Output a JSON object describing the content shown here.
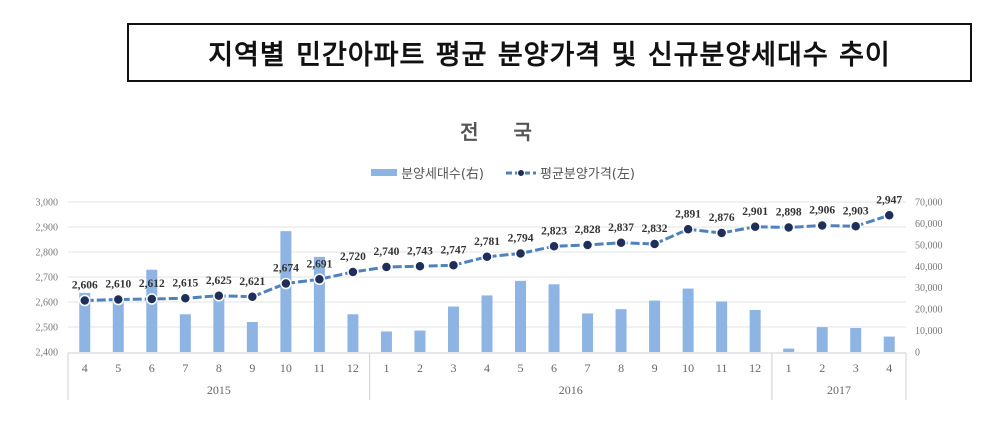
{
  "header": {
    "title": "지역별 민간아파트 평균 분양가격 및 신규분양세대수 추이"
  },
  "chart": {
    "title": "전 국",
    "legend": {
      "bars_label": "분양세대수(右)",
      "line_label": "평균분양가격(左)"
    }
  },
  "colors": {
    "bar": "#8eb4e3",
    "line": "#4f81bd",
    "marker": "#1f2f5a",
    "grid": "#e3e3e3",
    "axis": "#d0d0d0"
  },
  "chart_data": {
    "type": "bar+line",
    "title": "전 국",
    "categories": [
      "4",
      "5",
      "6",
      "7",
      "8",
      "9",
      "10",
      "11",
      "12",
      "1",
      "2",
      "3",
      "4",
      "5",
      "6",
      "7",
      "8",
      "9",
      "10",
      "11",
      "12",
      "1",
      "2",
      "3",
      "4"
    ],
    "groups": [
      {
        "label": "2015",
        "start": 0,
        "count": 9
      },
      {
        "label": "2016",
        "start": 9,
        "count": 12
      },
      {
        "label": "2017",
        "start": 21,
        "count": 4
      }
    ],
    "series": [
      {
        "name": "분양세대수(右)",
        "type": "bar",
        "axis": "right",
        "values": [
          27600,
          24400,
          38400,
          17600,
          25200,
          14000,
          56400,
          44400,
          17600,
          9600,
          10000,
          21200,
          26400,
          33200,
          31600,
          18000,
          20000,
          24000,
          29600,
          23600,
          19600,
          1600,
          11600,
          11200,
          7200
        ]
      },
      {
        "name": "평균분양가격(左)",
        "type": "line",
        "axis": "left",
        "values": [
          2606,
          2610,
          2612,
          2615,
          2625,
          2621,
          2674,
          2691,
          2720,
          2740,
          2743,
          2747,
          2781,
          2794,
          2823,
          2828,
          2837,
          2832,
          2891,
          2876,
          2901,
          2898,
          2906,
          2903,
          2947
        ],
        "labels": [
          "2,606",
          "2,610",
          "2,612",
          "2,615",
          "2,625",
          "2,621",
          "2,674",
          "2,691",
          "2,720",
          "2,740",
          "2,743",
          "2,747",
          "2,781",
          "2,794",
          "2,823",
          "2,828",
          "2,837",
          "2,832",
          "2,891",
          "2,876",
          "2,901",
          "2,898",
          "2,906",
          "2,903",
          "2,947"
        ]
      }
    ],
    "y_left": {
      "range": [
        2400,
        3000
      ],
      "ticks": [
        "2,400",
        "2,500",
        "2,600",
        "2,700",
        "2,800",
        "2,900",
        "3,000"
      ]
    },
    "y_right": {
      "range": [
        0,
        70000
      ],
      "ticks": [
        "0",
        "10,000",
        "20,000",
        "30,000",
        "40,000",
        "50,000",
        "60,000",
        "70,000"
      ]
    },
    "grid": true,
    "legend_position": "top"
  }
}
